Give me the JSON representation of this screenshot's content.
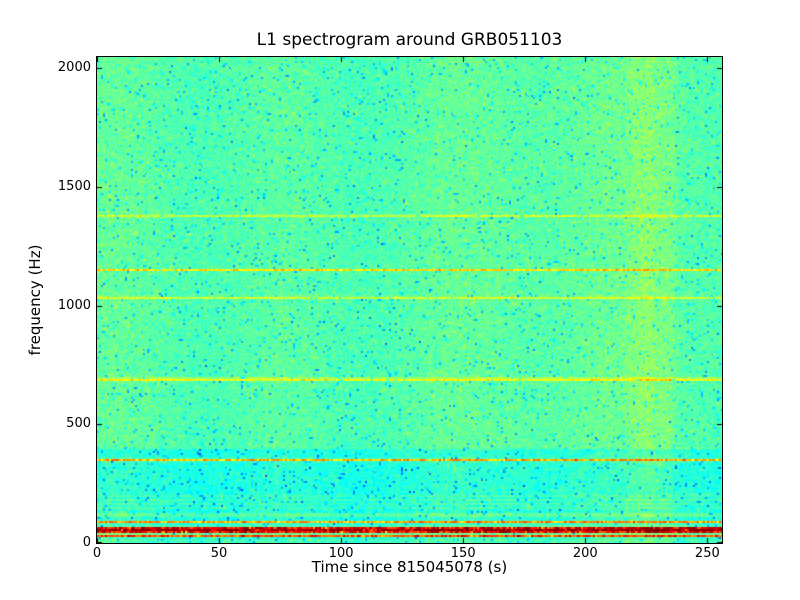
{
  "chart_data": {
    "type": "heatmap",
    "subtype": "spectrogram",
    "title": "L1 spectrogram around GRB051103",
    "xlabel": "Time since 815045078 (s)",
    "ylabel": "frequency (Hz)",
    "xlim": [
      0,
      256
    ],
    "ylim": [
      0,
      2048
    ],
    "x_ticks": [
      0,
      50,
      100,
      150,
      200,
      250
    ],
    "y_ticks": [
      0,
      500,
      1000,
      1500,
      2000
    ],
    "colormap": "jet",
    "legend": "none",
    "grid": false,
    "colors": {
      "background": "#ffffff",
      "text": "#000000",
      "frame": "#000000"
    },
    "background": {
      "split_hz": 400,
      "upper_level": 0.458,
      "lower_level": 0.408,
      "bottom_band_hz": 18,
      "bottom_level": 0.44,
      "stripe_band_hz": [
        140,
        205
      ],
      "stripe_boost": 0.03
    },
    "spectral_lines": [
      {
        "freq_hz": 1380,
        "peak": 0.565,
        "sigma_hz": 4,
        "shape": 2,
        "note": "faint yellow-green line"
      },
      {
        "freq_hz": 1150,
        "peak": 0.615,
        "sigma_hz": 4,
        "shape": 2,
        "note": "yellow line"
      },
      {
        "freq_hz": 1035,
        "peak": 0.6,
        "sigma_hz": 4,
        "shape": 2,
        "note": "yellow line"
      },
      {
        "freq_hz": 690,
        "peak": 0.645,
        "sigma_hz": 5,
        "shape": 2,
        "note": "bright yellow line"
      },
      {
        "freq_hz": 350,
        "peak": 0.705,
        "sigma_hz": 5,
        "shape": 2,
        "note": "yellow-orange line with red flecks"
      },
      {
        "freq_hz": 118,
        "peak": 0.53,
        "sigma_hz": 5,
        "shape": 2,
        "note": "faint greenish line"
      },
      {
        "freq_hz": 88,
        "peak": 0.73,
        "sigma_hz": 4,
        "shape": 2,
        "note": "orange line"
      },
      {
        "freq_hz": 55,
        "peak": 1.0,
        "sigma_hz": 13,
        "shape": 4,
        "note": "strong dark-red band (power line region)"
      },
      {
        "freq_hz": 30,
        "peak": 0.82,
        "sigma_hz": 5,
        "shape": 2,
        "note": "orange-red line"
      }
    ],
    "vertical_bands": [
      {
        "t0": 215,
        "t1": 238,
        "boost": 0.026,
        "note": "subtle yellowish vertical streak near t=225 s"
      },
      {
        "t0": 221,
        "t1": 229,
        "boost": 0.015,
        "note": "core of streak"
      }
    ],
    "noise": {
      "sigma": 0.05,
      "dark_prob": 0.055,
      "dark_depth": 0.12,
      "bright_prob": 0.035,
      "bright_boost": 0.055,
      "hot_mottle_threshold": 0.82,
      "hot_mottle_amp": 0.13
    }
  }
}
